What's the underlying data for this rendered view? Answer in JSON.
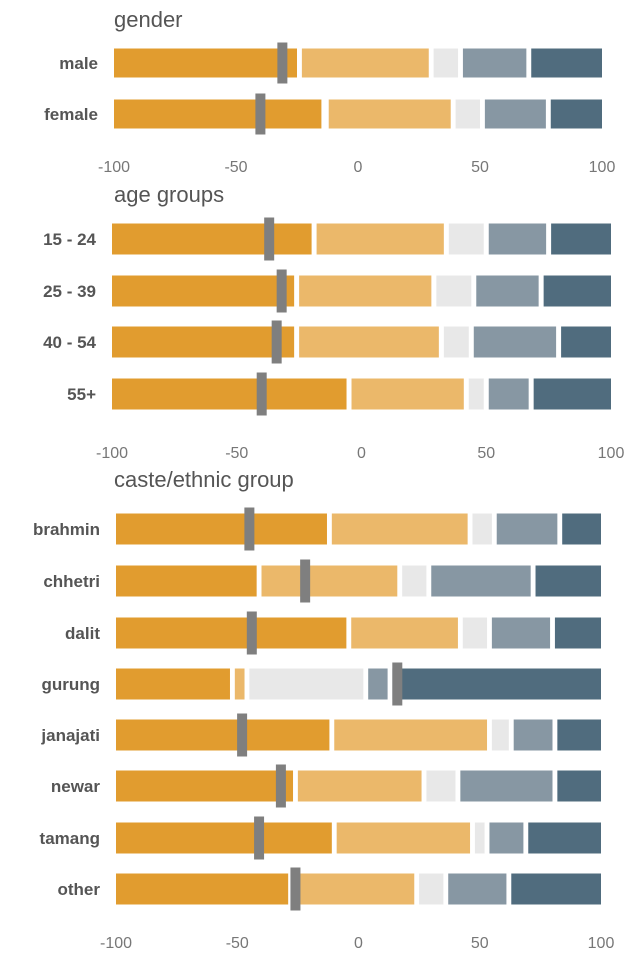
{
  "chart_data": [
    {
      "type": "bar",
      "subtype": "diverging-stacked",
      "title": "gender",
      "xlim": [
        -100,
        100
      ],
      "ticks": [
        "-100",
        "-50",
        "0",
        "50",
        "100"
      ],
      "categories": [
        "male",
        "female"
      ],
      "series": [
        {
          "color": "#E19C2F",
          "values": [
            [
              -100,
              -25
            ],
            [
              -100,
              -15
            ]
          ]
        },
        {
          "color": "#EBB86A",
          "values": [
            [
              -23,
              29
            ],
            [
              -12,
              38
            ]
          ]
        },
        {
          "color": "#E8E8E8",
          "values": [
            [
              31,
              41
            ],
            [
              40,
              50
            ]
          ]
        },
        {
          "color": "#8797A3",
          "values": [
            [
              43,
              69
            ],
            [
              52,
              77
            ]
          ]
        },
        {
          "color": "#506C7E",
          "values": [
            [
              71,
              100
            ],
            [
              79,
              100
            ]
          ]
        }
      ],
      "markers": [
        -31,
        -40
      ]
    },
    {
      "type": "bar",
      "subtype": "diverging-stacked",
      "title": "age groups",
      "xlim": [
        -100,
        100
      ],
      "ticks": [
        "-100",
        "-50",
        "0",
        "50",
        "100"
      ],
      "categories": [
        "15 - 24",
        "25 - 39",
        "40 - 54",
        "55+"
      ],
      "series": [
        {
          "color": "#E19C2F",
          "values": [
            [
              -100,
              -20
            ],
            [
              -100,
              -27
            ],
            [
              -100,
              -27
            ],
            [
              -100,
              -6
            ]
          ]
        },
        {
          "color": "#EBB86A",
          "values": [
            [
              -18,
              33
            ],
            [
              -25,
              28
            ],
            [
              -25,
              31
            ],
            [
              -4,
              41
            ]
          ]
        },
        {
          "color": "#E8E8E8",
          "values": [
            [
              35,
              49
            ],
            [
              30,
              44
            ],
            [
              33,
              43
            ],
            [
              43,
              49
            ]
          ]
        },
        {
          "color": "#8797A3",
          "values": [
            [
              51,
              74
            ],
            [
              46,
              71
            ],
            [
              45,
              78
            ],
            [
              51,
              67
            ]
          ]
        },
        {
          "color": "#506C7E",
          "values": [
            [
              76,
              100
            ],
            [
              73,
              100
            ],
            [
              80,
              100
            ],
            [
              69,
              100
            ]
          ]
        }
      ],
      "markers": [
        -37,
        -32,
        -34,
        -40
      ]
    },
    {
      "type": "bar",
      "subtype": "diverging-stacked",
      "title": "caste/ethnic group",
      "xlim": [
        -100,
        100
      ],
      "ticks": [
        "-100",
        "-50",
        "0",
        "50",
        "100"
      ],
      "categories": [
        "brahmin",
        "chhetri",
        "dalit",
        "gurung",
        "janajati",
        "newar",
        "tamang",
        "other"
      ],
      "series": [
        {
          "color": "#E19C2F",
          "values": [
            [
              -100,
              -13
            ],
            [
              -100,
              -42
            ],
            [
              -100,
              -5
            ],
            [
              -100,
              -53
            ],
            [
              -100,
              -12
            ],
            [
              -100,
              -27
            ],
            [
              -100,
              -11
            ],
            [
              -100,
              -29
            ]
          ]
        },
        {
          "color": "#EBB86A",
          "values": [
            [
              -11,
              45
            ],
            [
              -40,
              16
            ],
            [
              -3,
              41
            ],
            [
              -51,
              -47
            ],
            [
              -10,
              53
            ],
            [
              -25,
              26
            ],
            [
              -9,
              46
            ],
            [
              -27,
              23
            ]
          ]
        },
        {
          "color": "#E8E8E8",
          "values": [
            [
              47,
              55
            ],
            [
              18,
              28
            ],
            [
              43,
              53
            ],
            [
              -45,
              2
            ],
            [
              55,
              62
            ],
            [
              28,
              40
            ],
            [
              48,
              52
            ],
            [
              25,
              35
            ]
          ]
        },
        {
          "color": "#8797A3",
          "values": [
            [
              57,
              82
            ],
            [
              30,
              71
            ],
            [
              55,
              79
            ],
            [
              4,
              12
            ],
            [
              64,
              80
            ],
            [
              42,
              80
            ],
            [
              54,
              68
            ],
            [
              37,
              61
            ]
          ]
        },
        {
          "color": "#506C7E",
          "values": [
            [
              84,
              100
            ],
            [
              73,
              100
            ],
            [
              81,
              100
            ],
            [
              14,
              100
            ],
            [
              82,
              100
            ],
            [
              82,
              100
            ],
            [
              70,
              100
            ],
            [
              63,
              100
            ]
          ]
        }
      ],
      "markers": [
        -45,
        -22,
        -44,
        16,
        -48,
        -32,
        -41,
        -26
      ]
    }
  ]
}
